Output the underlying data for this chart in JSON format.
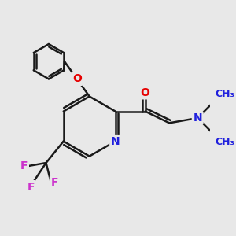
{
  "background_color": "#e8e8e8",
  "bond_color": "#1a1a1a",
  "bond_width": 1.8,
  "atom_colors": {
    "O": "#e60000",
    "N": "#2020dd",
    "F": "#cc33cc",
    "C": "#1a1a1a"
  },
  "font_size": 10,
  "fig_size": [
    3.0,
    3.0
  ],
  "dpi": 100,
  "xlim": [
    -2.2,
    2.8
  ],
  "ylim": [
    -2.5,
    2.5
  ]
}
